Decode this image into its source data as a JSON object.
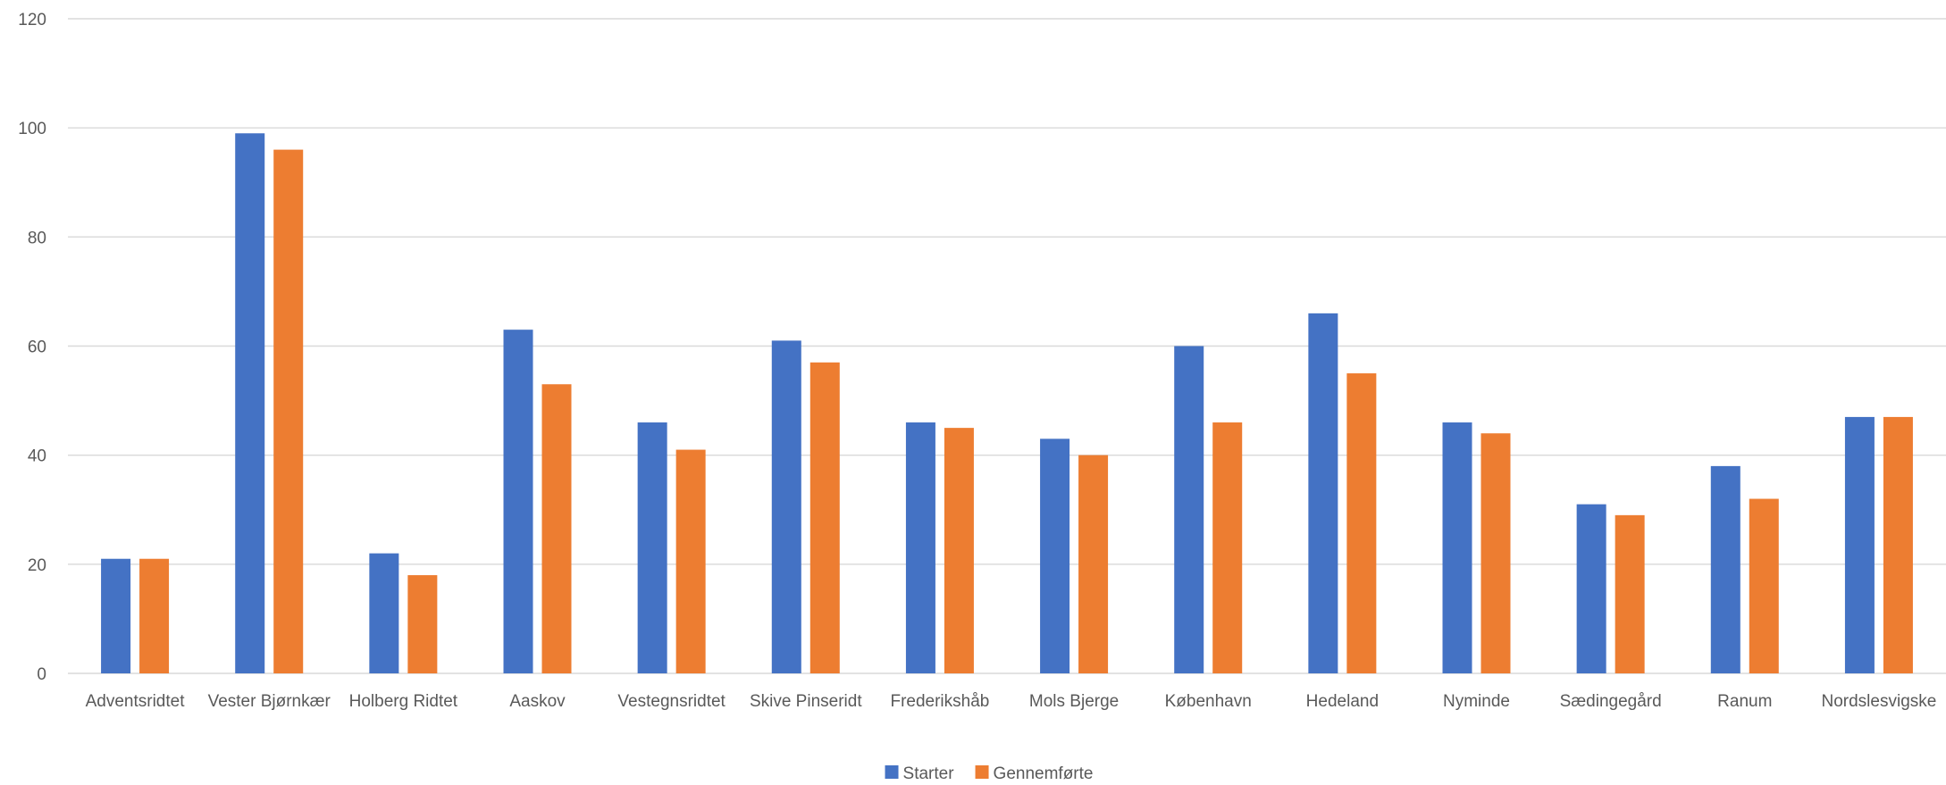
{
  "chart_data": {
    "type": "bar",
    "categories": [
      "Adventsridtet",
      "Vester Bjørnkær",
      "Holberg Ridtet",
      "Aaskov",
      "Vestegnsridtet",
      "Skive Pinseridt",
      "Frederikshåb",
      "Mols Bjerge",
      "København",
      "Hedeland",
      "Nyminde",
      "Sædingegård",
      "Ranum",
      "Nordslesvigske"
    ],
    "series": [
      {
        "name": "Starter",
        "color": "#4472c4",
        "values": [
          21,
          99,
          22,
          63,
          46,
          61,
          46,
          43,
          60,
          66,
          46,
          31,
          38,
          47
        ]
      },
      {
        "name": "Gennemførte",
        "color": "#ed7d31",
        "values": [
          21,
          96,
          18,
          53,
          41,
          57,
          45,
          40,
          46,
          55,
          44,
          29,
          32,
          47
        ]
      }
    ],
    "ylim": [
      0,
      120
    ],
    "yticks": [
      0,
      20,
      40,
      60,
      80,
      100,
      120
    ],
    "grid": true,
    "legend": "bottom"
  }
}
